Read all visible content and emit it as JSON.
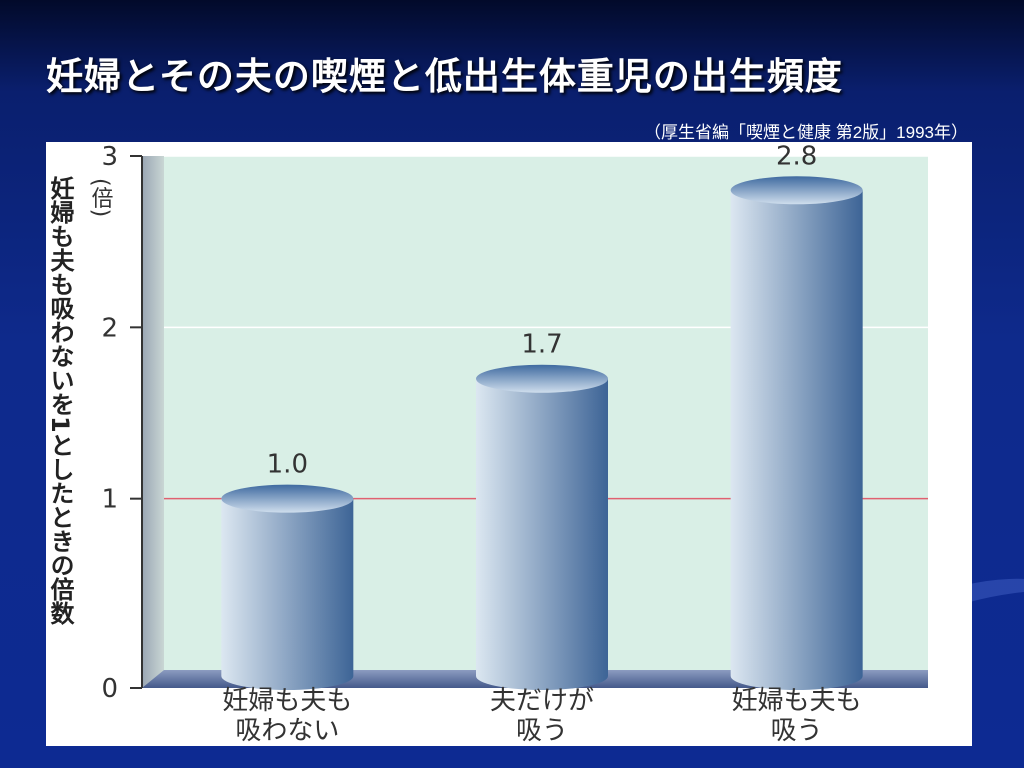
{
  "slide": {
    "title": "妊婦とその夫の喫煙と低出生体重児の出生頻度",
    "source": "（厚生省編「喫煙と健康 第2版」1993年）"
  },
  "chart_data": {
    "type": "bar",
    "categories": [
      [
        "妊婦も夫も",
        "吸わない"
      ],
      [
        "夫だけが",
        "吸う"
      ],
      [
        "妊婦も夫も",
        "吸う"
      ]
    ],
    "values": [
      1.0,
      1.7,
      2.8
    ],
    "value_labels": [
      "1.0",
      "1.7",
      "2.8"
    ],
    "ylabel": "妊婦も夫も吸わないを1としたときの倍数",
    "yunit": "(倍)",
    "ylim": [
      0,
      3
    ],
    "yticks": [
      0,
      1,
      2,
      3
    ],
    "reference_line": 1,
    "grid": true,
    "colors": {
      "plot_background": "#d9efe6",
      "bar_light": "#dce7f1",
      "bar_dark": "#3d6496",
      "reference_line": "#e06070",
      "axis": "#333333",
      "floor": "#5a6f9c"
    }
  }
}
